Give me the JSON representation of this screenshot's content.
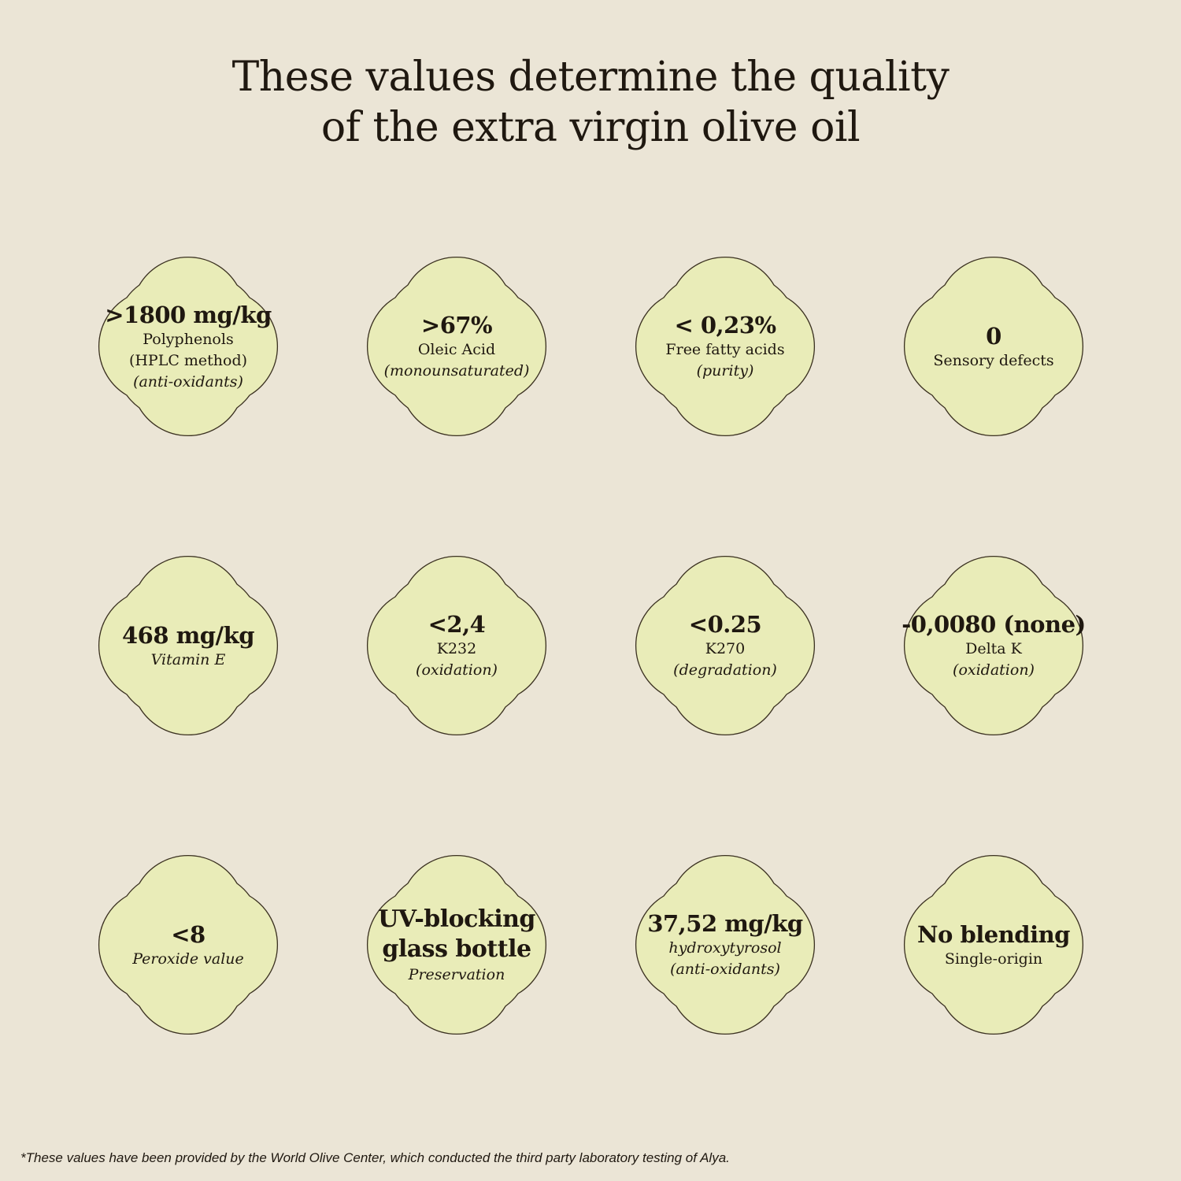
{
  "title": {
    "line1": "These values determine the quality",
    "line2": "of the extra virgin olive oil"
  },
  "colors": {
    "background": "#ebe5d6",
    "shape_fill": "#e9ecb8",
    "shape_stroke": "#3a3020",
    "text": "#1f1810"
  },
  "cards": [
    {
      "value": ">1800 mg/kg",
      "label": "Polyphenols",
      "label2": "(HPLC method)",
      "note": "(anti-oxidants)"
    },
    {
      "value": ">67%",
      "label": "Oleic Acid",
      "label2": "",
      "note": "(monounsaturated)"
    },
    {
      "value": "< 0,23%",
      "label": "Free fatty acids",
      "label2": "",
      "note": "(purity)"
    },
    {
      "value": "0",
      "label": "Sensory defects",
      "label2": "",
      "note": ""
    },
    {
      "value": "468 mg/kg",
      "label": "",
      "label2": "",
      "note": "Vitamin E"
    },
    {
      "value": "<2,4",
      "label": "K232",
      "label2": "",
      "note": "(oxidation)"
    },
    {
      "value": "<0.25",
      "label": "K270",
      "label2": "",
      "note": "(degradation)"
    },
    {
      "value": "-0,0080 (none)",
      "label": "Delta K",
      "label2": "",
      "note": "(oxidation)"
    },
    {
      "value": "<8",
      "label": "",
      "label2": "",
      "note": "Peroxide value"
    },
    {
      "value": "UV-blocking",
      "value2": "glass bottle",
      "label": "",
      "label2": "",
      "note": "Preservation"
    },
    {
      "value": "37,52 mg/kg",
      "label": "",
      "label2": "",
      "note": "hydroxytyrosol",
      "note2": "(anti-oxidants)"
    },
    {
      "value": "No blending",
      "label": "Single-origin",
      "label2": "",
      "note": ""
    }
  ],
  "footnote": "*These values have been provided by the World Olive Center, which conducted the third party laboratory testing of Alya."
}
